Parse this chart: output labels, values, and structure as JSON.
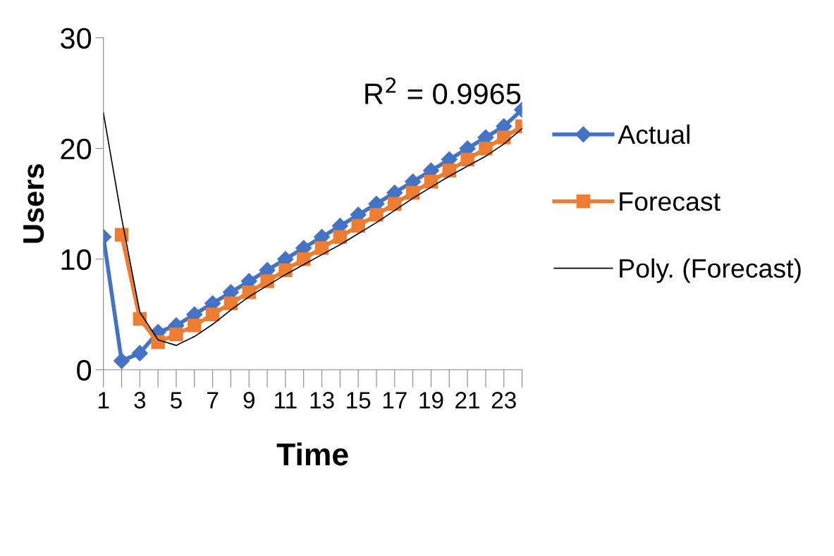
{
  "chart_data": {
    "type": "line",
    "xlabel": "Time",
    "ylabel": "Users",
    "categories": [
      "1",
      null,
      "3",
      null,
      "5",
      null,
      "7",
      null,
      "9",
      null,
      "11",
      null,
      "13",
      null,
      "15",
      null,
      "17",
      null,
      "19",
      null,
      "21",
      null,
      "23",
      null
    ],
    "ylim": [
      0,
      30
    ],
    "yticks": [
      0,
      10,
      20,
      30
    ],
    "grid": false,
    "legend": "right",
    "annotations": [
      "R$^{2}$ = 0.9965"
    ],
    "series": [
      {
        "name": "Actual",
        "color": "#4472c4",
        "marker": "diamond",
        "values": [
          12,
          0.8,
          1.5,
          3.4,
          4,
          5,
          6,
          7,
          8,
          9,
          10,
          11,
          12,
          13,
          14,
          15,
          16,
          17,
          18,
          19,
          20,
          21,
          22,
          23.5
        ]
      },
      {
        "name": "Forecast",
        "color": "#ed7d31",
        "marker": "square",
        "values": [
          null,
          12.2,
          4.6,
          2.5,
          3.2,
          4,
          5,
          6,
          7,
          8,
          9,
          10,
          11,
          12,
          13,
          14,
          15,
          16,
          17,
          18,
          19,
          20,
          21,
          22
        ]
      },
      {
        "name": "Poly. (Forecast)",
        "color": "#000000",
        "marker": "none",
        "values": [
          23.2,
          13.7,
          5.2,
          2.7,
          2.2,
          3,
          4.1,
          5.4,
          6.6,
          7.6,
          8.6,
          9.5,
          10.4,
          11.3,
          12.3,
          13.3,
          14.4,
          15.5,
          16.5,
          17.5,
          18.4,
          19.3,
          20.4,
          21.8
        ]
      }
    ]
  }
}
